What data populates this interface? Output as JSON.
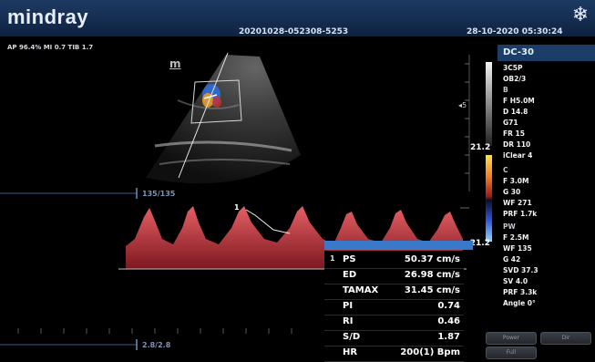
{
  "header": {
    "brand": "mindray",
    "exam_id": "20201028-052308-5253",
    "datetime": "28-10-2020 05:30:24",
    "freeze_icon": "snowflake-icon"
  },
  "params_line": "AP 96.4%  MI 0.7  TIB 1.7",
  "probe_mark": "m",
  "bmode_scale": "135/135",
  "doppler_scale": "2.8/2.8",
  "doppler_cursor_label": "1",
  "color_scale": {
    "top": "21.2",
    "bottom": "-21.2"
  },
  "right_panel": {
    "probe": "DC-30",
    "items": [
      "3C5P",
      "OB2/3",
      "B",
      "F H5.0M",
      "D 14.8",
      "G71",
      "FR 15",
      "DR 110",
      "iClear 4",
      "C",
      "F 3.0M",
      "G 30",
      "WF 271",
      "PRF 1.7k",
      "PW",
      "F 2.5M",
      "WF 135",
      "G 42",
      "SVD 37.3",
      "SV 4.0",
      "PRF 3.3k",
      "Angle 0°"
    ],
    "buttons": [
      "Power",
      "Dir",
      "Full"
    ]
  },
  "measurements": {
    "index": "1",
    "rows": [
      {
        "label": "PS",
        "value": "50.37 cm/s"
      },
      {
        "label": "ED",
        "value": "26.98 cm/s"
      },
      {
        "label": "TAMAX",
        "value": "31.45 cm/s"
      },
      {
        "label": "PI",
        "value": "0.74"
      },
      {
        "label": "RI",
        "value": "0.46"
      },
      {
        "label": "S/D",
        "value": "1.87"
      },
      {
        "label": "HR",
        "value": "200(1) Bpm"
      }
    ]
  },
  "colors": {
    "header_bg": "#1d3a63",
    "doppler_wave": "#e0404a",
    "measure_bar": "#3a78c9",
    "color_flow_pos": "#f0a020",
    "color_flow_neg": "#2f6fe0"
  }
}
